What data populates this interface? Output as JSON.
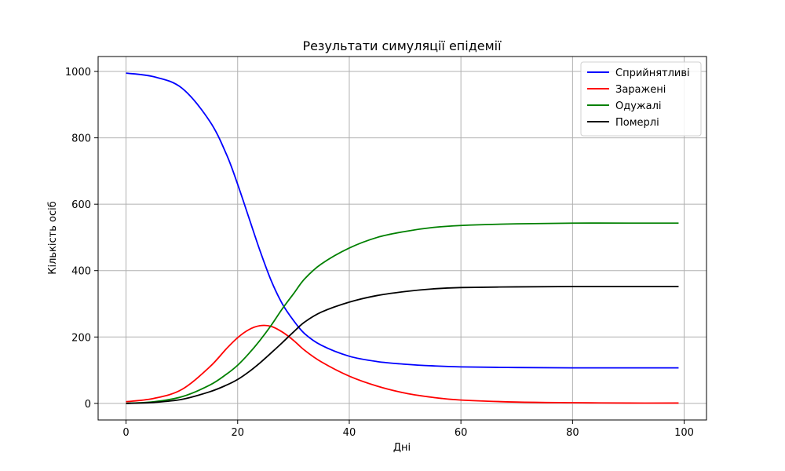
{
  "chart_data": {
    "type": "line",
    "title": "Результати симуляції епідемії",
    "xlabel": "Дні",
    "ylabel": "Кількість осіб",
    "xlim": [
      -5,
      104
    ],
    "ylim": [
      -50,
      1045
    ],
    "xticks": [
      0,
      20,
      40,
      60,
      80,
      100
    ],
    "yticks": [
      0,
      200,
      400,
      600,
      800,
      1000
    ],
    "grid": true,
    "legend_position": "top-right",
    "x": [
      0,
      5,
      10,
      15,
      18,
      20,
      22,
      24,
      26,
      28,
      30,
      32,
      35,
      40,
      45,
      50,
      55,
      60,
      70,
      80,
      90,
      99
    ],
    "series": [
      {
        "name": "Сприйнятливі",
        "color": "#0000ff",
        "values": [
          995,
          984,
          950,
          850,
          750,
          660,
          560,
          460,
          370,
          300,
          250,
          210,
          175,
          142,
          126,
          118,
          113,
          110,
          108,
          107,
          107,
          107
        ]
      },
      {
        "name": "Заражені",
        "color": "#ff0000",
        "values": [
          5,
          15,
          42,
          110,
          165,
          198,
          222,
          234,
          232,
          215,
          190,
          160,
          125,
          82,
          52,
          31,
          18,
          10,
          4,
          2,
          1,
          1
        ]
      },
      {
        "name": "Одужалі",
        "color": "#008000",
        "values": [
          0,
          5,
          20,
          55,
          88,
          115,
          150,
          190,
          235,
          285,
          330,
          375,
          420,
          468,
          500,
          518,
          530,
          536,
          541,
          543,
          543,
          543
        ]
      },
      {
        "name": "Померлі",
        "color": "#000000",
        "values": [
          0,
          3,
          12,
          35,
          55,
          72,
          95,
          122,
          152,
          183,
          215,
          245,
          275,
          305,
          325,
          337,
          345,
          349,
          351,
          352,
          352,
          352
        ]
      }
    ]
  }
}
